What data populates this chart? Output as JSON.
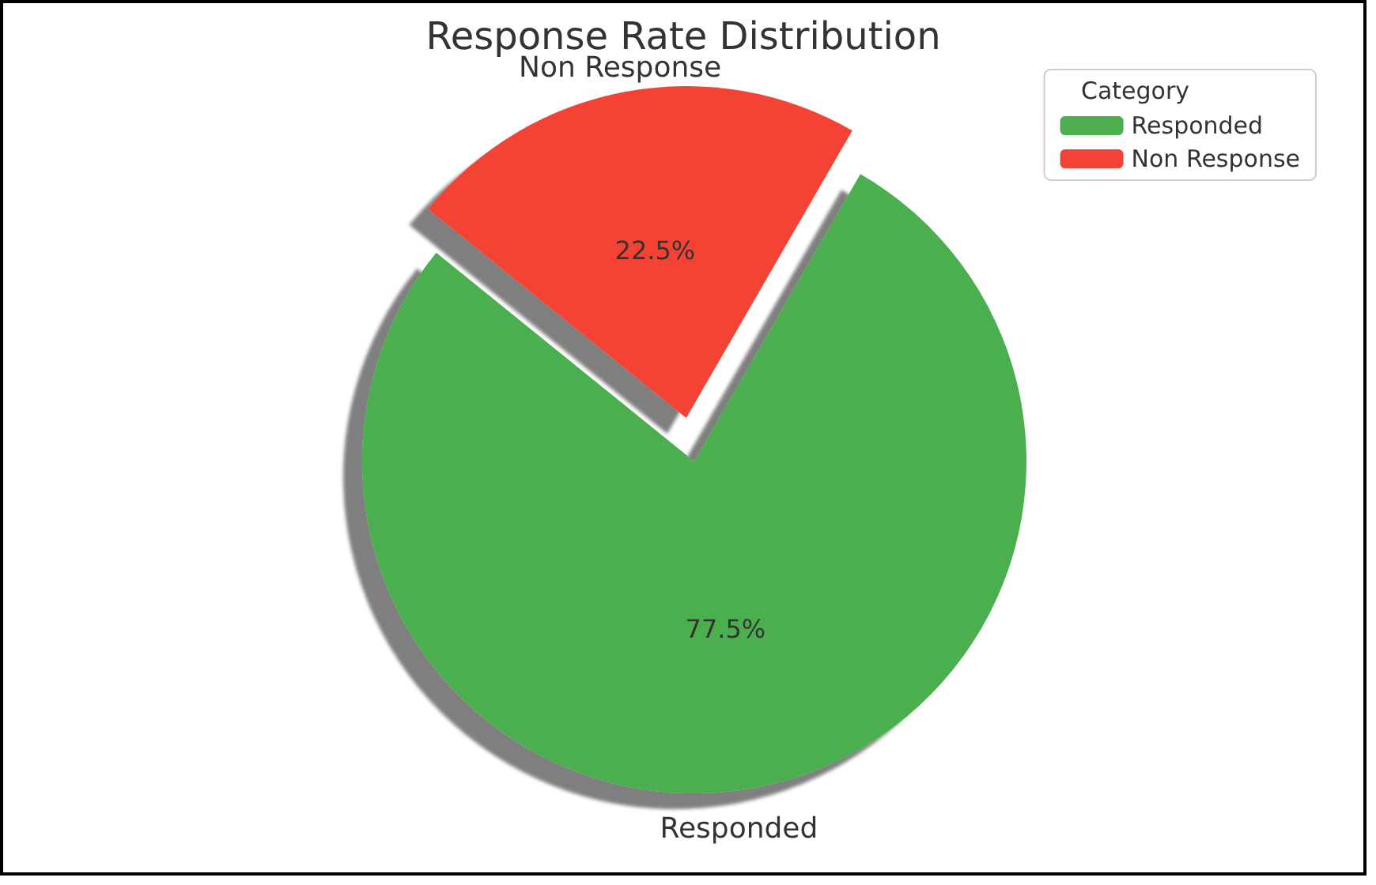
{
  "chart_data": {
    "type": "pie",
    "title": "Response Rate Distribution",
    "categories": [
      "Responded",
      "Non Response"
    ],
    "values": [
      77.5,
      22.5
    ],
    "colors": [
      "#4caf50",
      "#f44336"
    ],
    "value_labels": [
      "77.5%",
      "22.5%"
    ],
    "legend": "top right",
    "legend_title": "Category"
  }
}
